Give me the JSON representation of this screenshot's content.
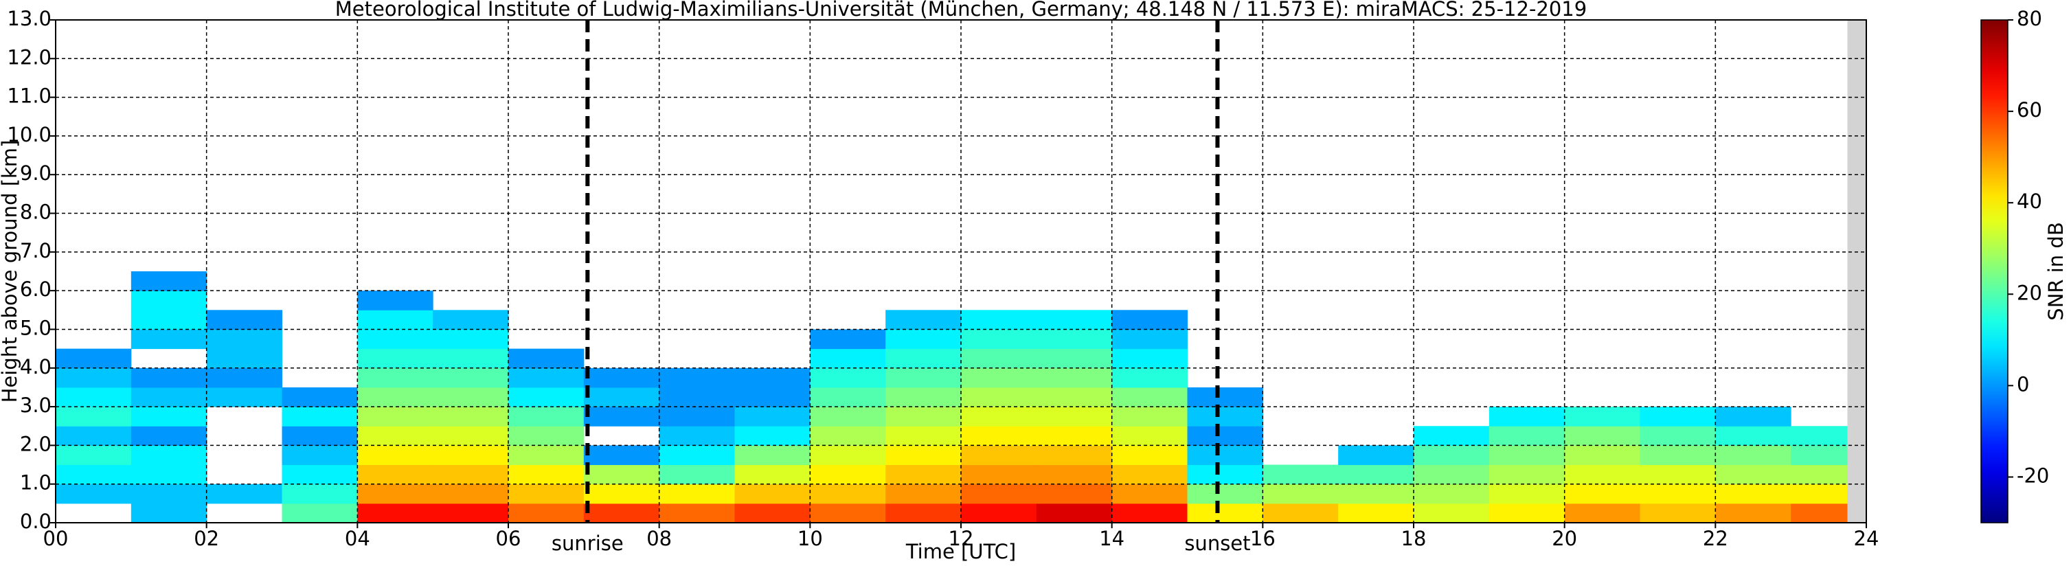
{
  "chart_data": {
    "type": "heatmap",
    "title": "Meteorological Institute of Ludwig-Maximilians-Universität (München, Germany; 48.148 N / 11.573 E):    miraMACS: 25-12-2019",
    "x_label": "Time [UTC]",
    "y_label": "Height above ground [km]",
    "colorbar_label": "SNR in dB",
    "colormap": "jet",
    "grid": true,
    "xlim": [
      0,
      24
    ],
    "ylim": [
      0,
      13
    ],
    "xticks": [
      {
        "value": 0,
        "label": "00"
      },
      {
        "value": 2,
        "label": "02"
      },
      {
        "value": 4,
        "label": "04"
      },
      {
        "value": 6,
        "label": "06"
      },
      {
        "value": 8,
        "label": "08"
      },
      {
        "value": 10,
        "label": "10"
      },
      {
        "value": 12,
        "label": "12"
      },
      {
        "value": 14,
        "label": "14"
      },
      {
        "value": 16,
        "label": "16"
      },
      {
        "value": 18,
        "label": "18"
      },
      {
        "value": 20,
        "label": "20"
      },
      {
        "value": 22,
        "label": "22"
      },
      {
        "value": 24,
        "label": "24"
      }
    ],
    "yticks": [
      {
        "value": 0,
        "label": "0.0"
      },
      {
        "value": 1,
        "label": "1.0"
      },
      {
        "value": 2,
        "label": "2.0"
      },
      {
        "value": 3,
        "label": "3.0"
      },
      {
        "value": 4,
        "label": "4.0"
      },
      {
        "value": 5,
        "label": "5.0"
      },
      {
        "value": 6,
        "label": "6.0"
      },
      {
        "value": 7,
        "label": "7.0"
      },
      {
        "value": 8,
        "label": "8.0"
      },
      {
        "value": 9,
        "label": "9.0"
      },
      {
        "value": 10,
        "label": "10.0"
      },
      {
        "value": 11,
        "label": "11.0"
      },
      {
        "value": 12,
        "label": "12.0"
      },
      {
        "value": 13,
        "label": "13.0"
      }
    ],
    "clim": [
      -30,
      80
    ],
    "cticks": [
      -20,
      0,
      20,
      40,
      60,
      80
    ],
    "no_data_from": 23.75,
    "events": [
      {
        "label": "sunrise",
        "x": 7.05
      },
      {
        "label": "sunset",
        "x": 15.4
      }
    ],
    "x_bins": [
      0,
      1,
      2,
      3,
      4,
      5,
      6,
      7,
      8,
      9,
      10,
      11,
      12,
      13,
      14,
      15,
      16,
      17,
      18,
      19,
      20,
      21,
      22,
      23,
      23.75
    ],
    "y_bins": [
      0,
      0.5,
      1,
      1.5,
      2,
      2.5,
      3,
      3.5,
      4,
      4.5,
      5,
      5.5,
      6,
      6.5
    ],
    "z": [
      [
        null,
        5,
        10,
        15,
        5,
        15,
        10,
        5,
        0,
        null,
        null,
        null,
        null
      ],
      [
        5,
        5,
        10,
        10,
        0,
        10,
        5,
        0,
        null,
        5,
        10,
        10,
        0
      ],
      [
        null,
        5,
        null,
        null,
        null,
        null,
        5,
        0,
        5,
        5,
        0,
        null,
        null
      ],
      [
        20,
        15,
        10,
        5,
        0,
        10,
        0,
        null,
        null,
        null,
        null,
        null,
        null
      ],
      [
        65,
        50,
        45,
        40,
        35,
        30,
        25,
        20,
        15,
        10,
        10,
        0,
        null
      ],
      [
        65,
        50,
        45,
        40,
        35,
        30,
        25,
        20,
        15,
        10,
        5,
        null,
        null
      ],
      [
        55,
        45,
        40,
        30,
        25,
        20,
        10,
        5,
        0,
        null,
        null,
        null,
        null
      ],
      [
        60,
        40,
        30,
        0,
        null,
        0,
        5,
        0,
        null,
        null,
        null,
        null,
        null
      ],
      [
        55,
        40,
        20,
        10,
        5,
        0,
        0,
        0,
        null,
        null,
        null,
        null,
        null
      ],
      [
        60,
        45,
        35,
        25,
        10,
        5,
        0,
        0,
        null,
        null,
        null,
        null,
        null
      ],
      [
        55,
        45,
        40,
        35,
        30,
        25,
        20,
        15,
        10,
        0,
        null,
        null,
        null
      ],
      [
        60,
        50,
        45,
        40,
        35,
        30,
        25,
        20,
        15,
        10,
        5,
        null,
        null
      ],
      [
        65,
        55,
        50,
        45,
        40,
        35,
        30,
        25,
        20,
        15,
        10,
        null,
        null
      ],
      [
        70,
        55,
        50,
        45,
        40,
        35,
        30,
        25,
        20,
        15,
        10,
        null,
        null
      ],
      [
        65,
        50,
        45,
        40,
        35,
        30,
        25,
        15,
        10,
        5,
        0,
        null,
        null
      ],
      [
        40,
        25,
        10,
        5,
        0,
        5,
        0,
        null,
        null,
        null,
        null,
        null,
        null
      ],
      [
        45,
        30,
        20,
        null,
        null,
        null,
        null,
        null,
        null,
        null,
        null,
        null,
        null
      ],
      [
        40,
        30,
        20,
        5,
        null,
        null,
        null,
        null,
        null,
        null,
        null,
        null,
        null
      ],
      [
        35,
        30,
        25,
        20,
        10,
        null,
        null,
        null,
        null,
        null,
        null,
        null,
        null
      ],
      [
        40,
        35,
        30,
        25,
        20,
        10,
        null,
        null,
        null,
        null,
        null,
        null,
        null
      ],
      [
        50,
        40,
        35,
        30,
        25,
        15,
        null,
        null,
        null,
        null,
        null,
        null,
        null
      ],
      [
        45,
        40,
        35,
        25,
        20,
        10,
        null,
        null,
        null,
        null,
        null,
        null,
        null
      ],
      [
        50,
        40,
        30,
        25,
        15,
        5,
        null,
        null,
        null,
        null,
        null,
        null,
        null
      ],
      [
        55,
        40,
        30,
        20,
        15,
        null,
        null,
        null,
        null,
        null,
        null,
        null,
        null
      ]
    ]
  }
}
